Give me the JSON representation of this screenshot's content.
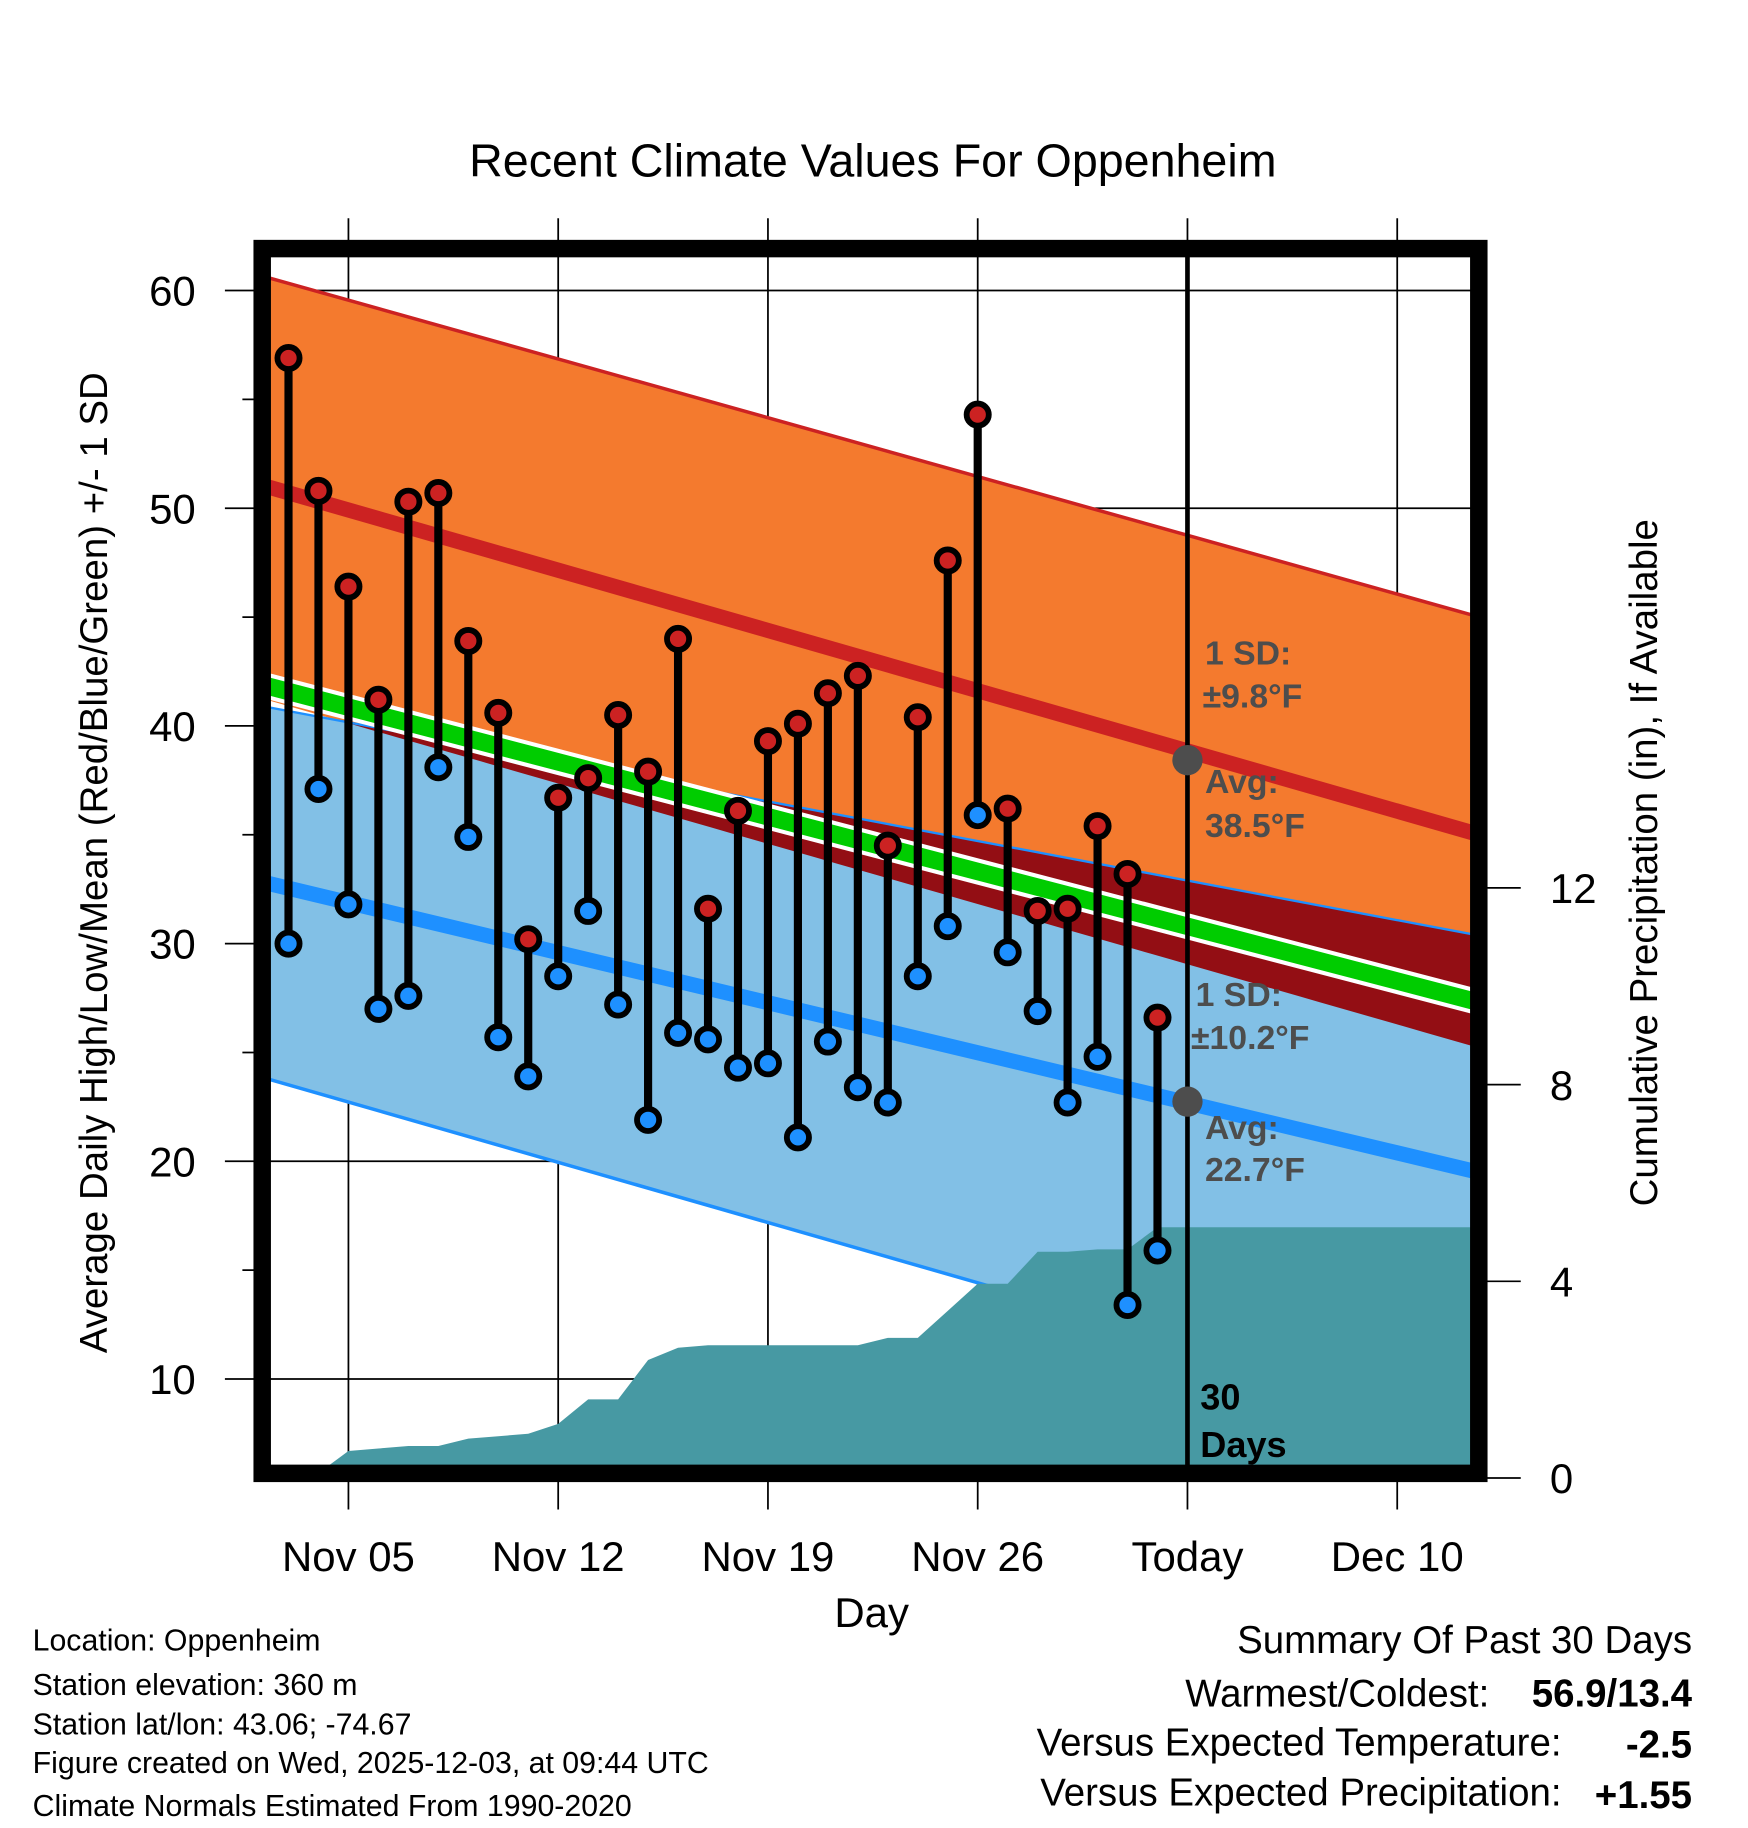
{
  "chart_data": {
    "type": "line",
    "title": "Recent Climate Values For Oppenheim",
    "xlabel": "Day",
    "ylabel": "Average Daily High/Low/Mean (Red/Blue/Green) +/- 1 SD",
    "y2label": "Cumulative Precipitation (in), If Available",
    "ylim": [
      5.5,
      62
    ],
    "y2lim": [
      0,
      14.5
    ],
    "grid": true,
    "x_ticks": [
      {
        "date": "2025-11-05",
        "label": "Nov 05"
      },
      {
        "date": "2025-11-12",
        "label": "Nov 12"
      },
      {
        "date": "2025-11-19",
        "label": "Nov 19"
      },
      {
        "date": "2025-11-26",
        "label": "Nov 26"
      },
      {
        "date": "2025-12-03",
        "label": "Today"
      },
      {
        "date": "2025-12-10",
        "label": "Dec 10"
      }
    ],
    "y_ticks": [
      "10",
      "20",
      "30",
      "40",
      "50",
      "60"
    ],
    "y2_ticks": [
      "0",
      "4",
      "8",
      "12"
    ],
    "today": "2025-12-03",
    "daily": {
      "dates": [
        "2025-11-03",
        "2025-11-04",
        "2025-11-05",
        "2025-11-06",
        "2025-11-07",
        "2025-11-08",
        "2025-11-09",
        "2025-11-10",
        "2025-11-11",
        "2025-11-12",
        "2025-11-13",
        "2025-11-14",
        "2025-11-15",
        "2025-11-16",
        "2025-11-17",
        "2025-11-18",
        "2025-11-19",
        "2025-11-20",
        "2025-11-21",
        "2025-11-22",
        "2025-11-23",
        "2025-11-24",
        "2025-11-25",
        "2025-11-26",
        "2025-11-27",
        "2025-11-28",
        "2025-11-29",
        "2025-11-30",
        "2025-12-01",
        "2025-12-02"
      ],
      "high": [
        56.9,
        50.8,
        46.4,
        41.2,
        50.3,
        50.7,
        43.9,
        40.6,
        30.2,
        36.7,
        37.6,
        40.5,
        37.9,
        44.0,
        31.6,
        36.1,
        39.3,
        40.1,
        41.5,
        42.3,
        34.5,
        40.4,
        47.6,
        54.3,
        36.2,
        31.5,
        31.6,
        35.4,
        33.2,
        26.6
      ],
      "low": [
        30.0,
        37.1,
        31.8,
        27.0,
        27.6,
        38.1,
        34.9,
        25.7,
        23.9,
        28.5,
        31.5,
        27.2,
        21.9,
        25.9,
        25.6,
        24.3,
        24.5,
        21.1,
        25.5,
        23.4,
        22.7,
        28.5,
        30.8,
        35.9,
        29.6,
        26.9,
        22.7,
        24.8,
        13.4,
        15.9
      ]
    },
    "normals": {
      "dates": [
        "2025-11-01",
        "2025-12-13"
      ],
      "high_mean": [
        51.5,
        34.9
      ],
      "high_plus_sd": [
        61.1,
        44.9
      ],
      "high_minus_sd": [
        41.7,
        25.1
      ],
      "low_mean": [
        33.2,
        19.4
      ],
      "low_plus_sd": [
        41.2,
        30.3
      ],
      "low_minus_sd": [
        24.3,
        7.7
      ],
      "mean": [
        42.3,
        27.2
      ]
    },
    "precip": {
      "dates": [
        "2025-11-01",
        "2025-11-03",
        "2025-11-04",
        "2025-11-05",
        "2025-11-06",
        "2025-11-07",
        "2025-11-08",
        "2025-11-09",
        "2025-11-10",
        "2025-11-11",
        "2025-11-12",
        "2025-11-13",
        "2025-11-14",
        "2025-11-15",
        "2025-11-16",
        "2025-11-17",
        "2025-11-22",
        "2025-11-23",
        "2025-11-24",
        "2025-11-25",
        "2025-11-26",
        "2025-11-27",
        "2025-11-28",
        "2025-11-29",
        "2025-11-30",
        "2025-12-01",
        "2025-12-02",
        "2025-12-13"
      ],
      "cumulative": [
        0.05,
        0.05,
        0.1,
        0.55,
        0.6,
        0.65,
        0.65,
        0.8,
        0.85,
        0.9,
        1.1,
        1.6,
        1.6,
        2.4,
        2.65,
        2.7,
        2.7,
        2.85,
        2.85,
        3.4,
        3.95,
        3.95,
        4.6,
        4.6,
        4.65,
        4.65,
        5.1,
        5.1
      ]
    },
    "annotations": {
      "high_sd_label": "1 SD:",
      "high_sd_value": "±9.8°F",
      "high_avg_label": "Avg:",
      "high_avg_value": "38.5°F",
      "low_sd_label": "1 SD:",
      "low_sd_value": "±10.2°F",
      "low_avg_label": "Avg:",
      "low_avg_value": "22.7°F",
      "window_count": "30",
      "window_unit": "Days"
    }
  },
  "footer": {
    "location": "Location: Oppenheim",
    "elevation": "Station elevation: 360 m",
    "latlon": "Station lat/lon: 43.06; -74.67",
    "created": "Figure created on Wed, 2025-12-03, at 09:44 UTC",
    "normals": "Climate Normals Estimated From 1990-2020"
  },
  "summary": {
    "title": "Summary Of Past 30 Days",
    "warmest_coldest_label": "Warmest/Coldest:",
    "warmest_coldest_value": "56.9/13.4",
    "temp_label": "Versus Expected Temperature:",
    "temp_value": "-2.5",
    "precip_label": "Versus Expected Precipitation:",
    "precip_value": "+1.55"
  },
  "colors": {
    "orange": "#f47a2e",
    "red": "#cc2222",
    "dark_red": "#930e14",
    "green": "#00cc00",
    "light_blue": "#82c0e6",
    "blue": "#1e90ff",
    "teal": "#4799a3",
    "gray": "#4d4d4d",
    "temp_delta": "#1e90ff",
    "precip_delta": "#11c411"
  }
}
